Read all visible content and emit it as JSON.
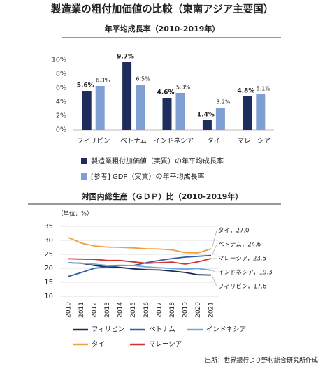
{
  "title": "製造業の粗付加価値の比較（東南アジア主要国）",
  "source": "出所：世界銀行より野村総合研究所作成",
  "chart_data": [
    {
      "type": "bar",
      "title": "年平均成長率（2010-2019年）",
      "categories": [
        "フィリピン",
        "ベトナム",
        "インドネシア",
        "タイ",
        "マレーシア"
      ],
      "series": [
        {
          "name": "製造業粗付加価値（実質）の年平均成長率",
          "color": "#1f2d5c",
          "values": [
            5.6,
            9.7,
            4.6,
            1.4,
            4.8
          ],
          "value_labels": [
            "5.6%",
            "9.7%",
            "4.6%",
            "1.4%",
            "4.8%"
          ]
        },
        {
          "name": "[参考] GDP（実質）の年平均成長率",
          "color": "#7f9fd4",
          "values": [
            6.3,
            6.5,
            5.3,
            3.2,
            5.1
          ],
          "value_labels": [
            "6.3%",
            "6.5%",
            "5.3%",
            "3.2%",
            "5.1%"
          ]
        }
      ],
      "ylim": [
        0,
        10
      ],
      "yticks": [
        {
          "value": 0,
          "label": "0%"
        },
        {
          "value": 2,
          "label": "2%"
        },
        {
          "value": 4,
          "label": "4%"
        },
        {
          "value": 6,
          "label": "6%"
        },
        {
          "value": 8,
          "label": "8%"
        },
        {
          "value": 10,
          "label": "10%"
        }
      ]
    },
    {
      "type": "line",
      "title": "対国内総生産（ＧＤＰ）比（2010-2019年）",
      "unit_label": "（単位：%）",
      "x": [
        2010,
        2011,
        2012,
        2013,
        2014,
        2015,
        2016,
        2017,
        2018,
        2019,
        2020,
        2021
      ],
      "series": [
        {
          "name": "フィリピン",
          "color": "#1b2a55",
          "values": [
            22,
            21.8,
            21,
            20.5,
            20.3,
            19.8,
            19.5,
            19.4,
            19,
            18.5,
            17.7,
            17.6
          ],
          "end_label": "フィリピン，17.6"
        },
        {
          "name": "ベトナム",
          "color": "#2e5fa8",
          "values": [
            17.1,
            18.5,
            20,
            20.5,
            21,
            21,
            22,
            22.8,
            23.5,
            24,
            24.3,
            24.6
          ],
          "end_label": "ベトナム，24.6"
        },
        {
          "name": "インドネシア",
          "color": "#6fa8dc",
          "values": [
            22,
            21.8,
            21.5,
            21,
            21.1,
            21,
            20.5,
            20.2,
            19.9,
            19.7,
            19.9,
            19.3
          ],
          "end_label": "インドネシア，19.3"
        },
        {
          "name": "タイ",
          "color": "#f0a040",
          "values": [
            31,
            29,
            28,
            27.6,
            27.5,
            27.3,
            27,
            26.9,
            26.6,
            25.6,
            25.5,
            27.0
          ],
          "end_label": "タイ，27.0"
        },
        {
          "name": "マレーシア",
          "color": "#d9302c",
          "values": [
            23.4,
            23.3,
            23.2,
            22.8,
            22.8,
            22.3,
            21.8,
            22,
            22.2,
            21.5,
            22.3,
            23.5
          ],
          "end_label": "マレーシア，23.5"
        }
      ],
      "ylim": [
        10,
        35
      ],
      "yticks": [
        10,
        15,
        20,
        25,
        30,
        35
      ],
      "grid": true
    }
  ]
}
